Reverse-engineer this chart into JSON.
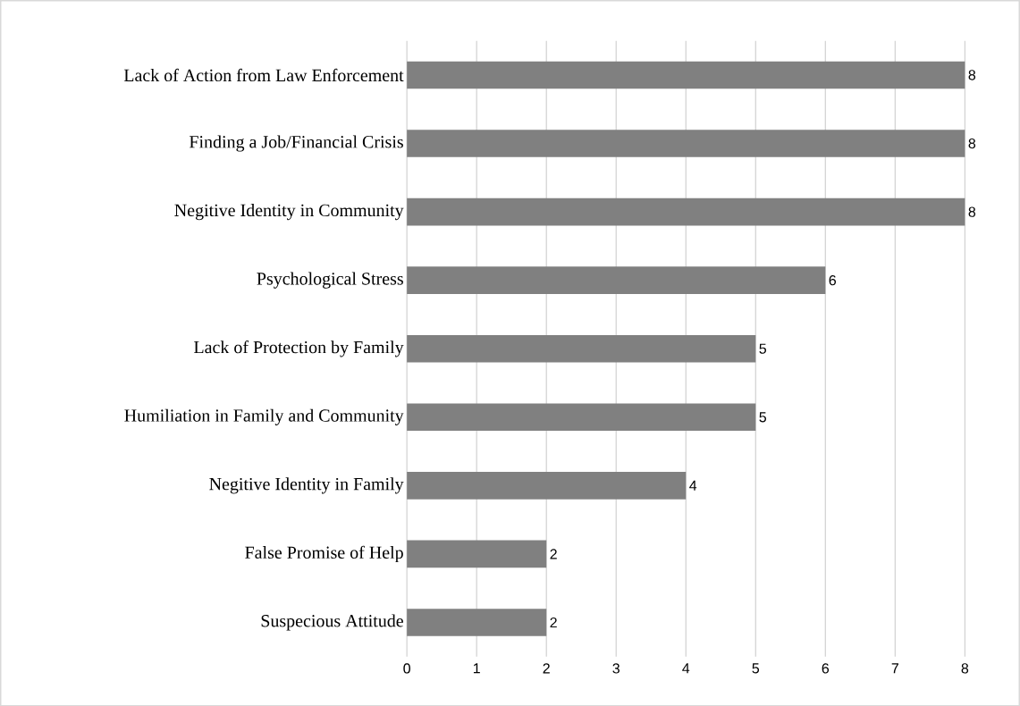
{
  "chart_data": {
    "type": "bar",
    "orientation": "horizontal",
    "categories": [
      "Lack of Action from Law Enforcement",
      "Finding a Job/Financial Crisis",
      "Negitive Identity in Community",
      "Psychological Stress",
      "Lack of Protection by Family",
      "Humiliation in Family and Community",
      "Negitive Identity in Family",
      "False Promise of Help",
      "Suspecious Attitude"
    ],
    "values": [
      8,
      8,
      8,
      6,
      5,
      5,
      4,
      2,
      2
    ],
    "color": "#808080",
    "xlim": [
      0,
      8
    ],
    "xticks": [
      0,
      1,
      2,
      3,
      4,
      5,
      6,
      7,
      8
    ],
    "grid": "x",
    "data_labels": true
  }
}
